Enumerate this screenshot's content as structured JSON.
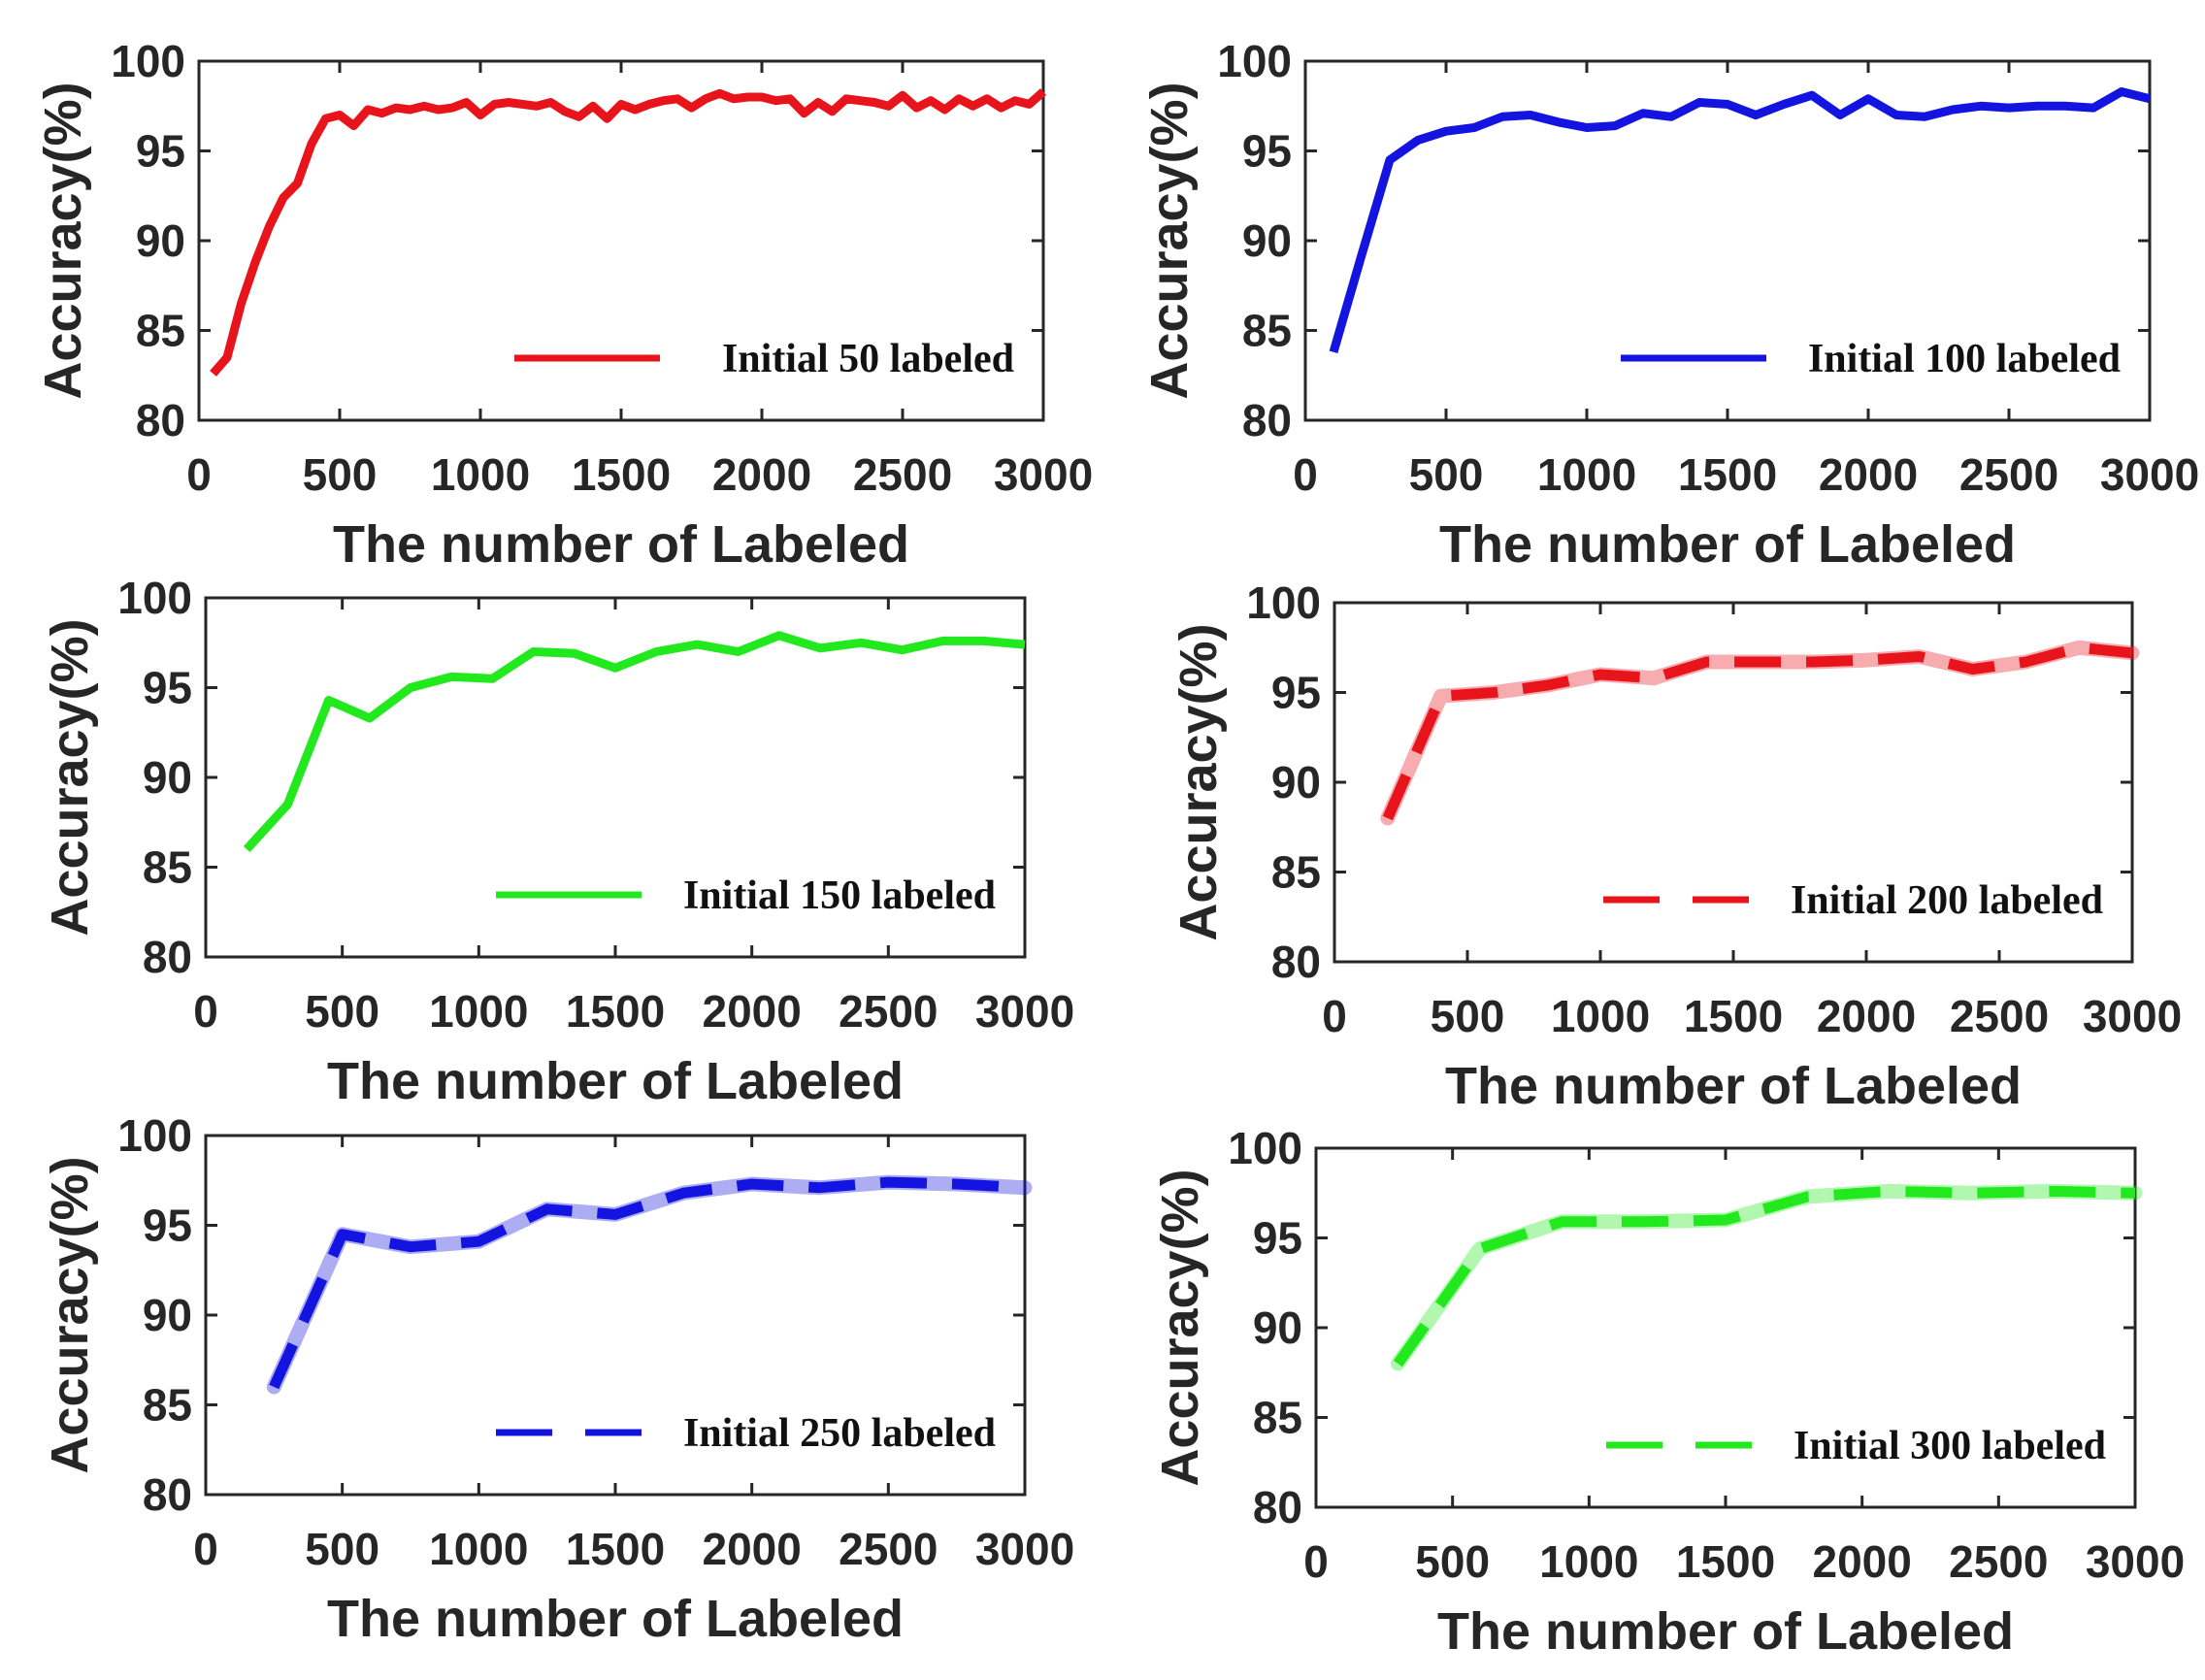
{
  "chart_data": [
    {
      "type": "line",
      "title": "",
      "xlabel": "The number of Labeled",
      "ylabel": "Accuracy(%)",
      "xlim": [
        0,
        3000
      ],
      "ylim": [
        80,
        100
      ],
      "xticks": [
        "0",
        "500",
        "1000",
        "1500",
        "2000",
        "2500",
        "3000"
      ],
      "yticks": [
        "80",
        "85",
        "90",
        "95",
        "100"
      ],
      "legend_position": "bottom-right",
      "series": [
        {
          "name": "Initial 50 labeled",
          "color": "#e8141c",
          "style": "solid",
          "x": [
            50,
            100,
            150,
            200,
            250,
            300,
            350,
            400,
            450,
            500,
            550,
            600,
            650,
            700,
            750,
            800,
            850,
            900,
            950,
            1000,
            1050,
            1100,
            1150,
            1200,
            1250,
            1300,
            1350,
            1400,
            1450,
            1500,
            1550,
            1600,
            1650,
            1700,
            1750,
            1800,
            1850,
            1900,
            1950,
            2000,
            2050,
            2100,
            2150,
            2200,
            2250,
            2300,
            2350,
            2400,
            2450,
            2500,
            2550,
            2600,
            2650,
            2700,
            2750,
            2800,
            2850,
            2900,
            2950,
            3000
          ],
          "y": [
            82.6,
            83.5,
            86.5,
            88.8,
            90.8,
            92.4,
            93.2,
            95.4,
            96.8,
            97.0,
            96.4,
            97.3,
            97.1,
            97.4,
            97.3,
            97.5,
            97.3,
            97.4,
            97.7,
            97.0,
            97.6,
            97.7,
            97.6,
            97.5,
            97.7,
            97.2,
            96.9,
            97.5,
            96.8,
            97.6,
            97.3,
            97.6,
            97.8,
            97.9,
            97.4,
            97.9,
            98.2,
            97.9,
            98.0,
            98.0,
            97.8,
            97.9,
            97.1,
            97.7,
            97.2,
            97.9,
            97.8,
            97.7,
            97.5,
            98.1,
            97.4,
            97.8,
            97.3,
            97.9,
            97.5,
            97.9,
            97.4,
            97.8,
            97.6,
            98.3
          ]
        }
      ]
    },
    {
      "type": "line",
      "title": "",
      "xlabel": "The number of Labeled",
      "ylabel": "Accuracy(%)",
      "xlim": [
        0,
        3000
      ],
      "ylim": [
        80,
        100
      ],
      "xticks": [
        "0",
        "500",
        "1000",
        "1500",
        "2000",
        "2500",
        "3000"
      ],
      "yticks": [
        "80",
        "85",
        "90",
        "95",
        "100"
      ],
      "legend_position": "bottom-right",
      "series": [
        {
          "name": "Initial 100 labeled",
          "color": "#1414e0",
          "style": "solid",
          "x": [
            100,
            200,
            300,
            400,
            500,
            600,
            700,
            800,
            900,
            1000,
            1100,
            1200,
            1300,
            1400,
            1500,
            1600,
            1700,
            1800,
            1900,
            2000,
            2100,
            2200,
            2300,
            2400,
            2500,
            2600,
            2700,
            2800,
            2900,
            3000
          ],
          "y": [
            83.8,
            89.2,
            94.5,
            95.6,
            96.1,
            96.3,
            96.9,
            97.0,
            96.6,
            96.3,
            96.4,
            97.1,
            96.9,
            97.7,
            97.6,
            97.0,
            97.6,
            98.1,
            97.0,
            97.9,
            97.0,
            96.9,
            97.3,
            97.5,
            97.4,
            97.5,
            97.5,
            97.4,
            98.3,
            97.9
          ]
        }
      ]
    },
    {
      "type": "line",
      "title": "",
      "xlabel": "The number of Labeled",
      "ylabel": "Accuracy(%)",
      "xlim": [
        0,
        3000
      ],
      "ylim": [
        80,
        100
      ],
      "xticks": [
        "0",
        "500",
        "1000",
        "1500",
        "2000",
        "2500",
        "3000"
      ],
      "yticks": [
        "80",
        "85",
        "90",
        "95",
        "100"
      ],
      "legend_position": "bottom-right",
      "series": [
        {
          "name": "Initial 150 labeled",
          "color": "#22e81e",
          "style": "solid",
          "x": [
            150,
            300,
            450,
            600,
            750,
            900,
            1050,
            1200,
            1350,
            1500,
            1650,
            1800,
            1950,
            2100,
            2250,
            2400,
            2550,
            2700,
            2850,
            3000
          ],
          "y": [
            86.0,
            88.5,
            94.3,
            93.3,
            95.0,
            95.6,
            95.5,
            97.0,
            96.9,
            96.1,
            97.0,
            97.4,
            97.0,
            97.9,
            97.2,
            97.5,
            97.1,
            97.6,
            97.6,
            97.4
          ]
        }
      ]
    },
    {
      "type": "line",
      "title": "",
      "xlabel": "The number of Labeled",
      "ylabel": "Accuracy(%)",
      "xlim": [
        0,
        3000
      ],
      "ylim": [
        80,
        100
      ],
      "xticks": [
        "0",
        "500",
        "1000",
        "1500",
        "2000",
        "2500",
        "3000"
      ],
      "yticks": [
        "80",
        "85",
        "90",
        "95",
        "100"
      ],
      "legend_position": "bottom-right",
      "series": [
        {
          "name": "Initial 200 labeled",
          "color": "#e8141c",
          "style": "dashed",
          "x": [
            200,
            400,
            600,
            800,
            1000,
            1200,
            1400,
            1600,
            1800,
            2000,
            2200,
            2400,
            2600,
            2800,
            3000
          ],
          "y": [
            88.0,
            94.8,
            95.0,
            95.4,
            96.0,
            95.8,
            96.7,
            96.7,
            96.7,
            96.8,
            97.0,
            96.3,
            96.7,
            97.5,
            97.2
          ]
        }
      ]
    },
    {
      "type": "line",
      "title": "",
      "xlabel": "The number of Labeled",
      "ylabel": "Accuracy(%)",
      "xlim": [
        0,
        3000
      ],
      "ylim": [
        80,
        100
      ],
      "xticks": [
        "0",
        "500",
        "1000",
        "1500",
        "2000",
        "2500",
        "3000"
      ],
      "yticks": [
        "80",
        "85",
        "90",
        "95",
        "100"
      ],
      "legend_position": "bottom-right",
      "series": [
        {
          "name": "Initial 250 labeled",
          "color": "#1414e0",
          "style": "dashed",
          "x": [
            250,
            500,
            750,
            1000,
            1250,
            1500,
            1750,
            2000,
            2250,
            2500,
            2750,
            3000
          ],
          "y": [
            86.0,
            94.5,
            93.8,
            94.1,
            95.9,
            95.6,
            96.8,
            97.3,
            97.1,
            97.4,
            97.3,
            97.1
          ]
        }
      ]
    },
    {
      "type": "line",
      "title": "",
      "xlabel": "The number of Labeled",
      "ylabel": "Accuracy(%)",
      "xlim": [
        0,
        3000
      ],
      "ylim": [
        80,
        100
      ],
      "xticks": [
        "0",
        "500",
        "1000",
        "1500",
        "2000",
        "2500",
        "3000"
      ],
      "yticks": [
        "80",
        "85",
        "90",
        "95",
        "100"
      ],
      "legend_position": "bottom-right",
      "series": [
        {
          "name": "Initial 300 labeled",
          "color": "#22e81e",
          "style": "dashed",
          "x": [
            300,
            600,
            900,
            1200,
            1500,
            1800,
            2100,
            2400,
            2700,
            3000
          ],
          "y": [
            88.0,
            94.4,
            95.9,
            95.9,
            96.0,
            97.3,
            97.6,
            97.5,
            97.6,
            97.5
          ]
        }
      ]
    }
  ]
}
